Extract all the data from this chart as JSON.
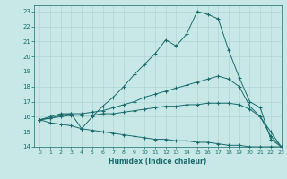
{
  "xlabel": "Humidex (Indice chaleur)",
  "bg_color": "#c8e8e8",
  "grid_color": "#b0d4d4",
  "line_color": "#1a6b6b",
  "xlim": [
    -0.5,
    23
  ],
  "ylim": [
    14,
    23.4
  ],
  "xticks": [
    0,
    1,
    2,
    3,
    4,
    5,
    6,
    7,
    8,
    9,
    10,
    11,
    12,
    13,
    14,
    15,
    16,
    17,
    18,
    19,
    20,
    21,
    22,
    23
  ],
  "yticks": [
    14,
    15,
    16,
    17,
    18,
    19,
    20,
    21,
    22,
    23
  ],
  "line1": {
    "x": [
      0,
      1,
      2,
      3,
      4,
      5,
      6,
      7,
      8,
      9,
      10,
      11,
      12,
      13,
      14,
      15,
      16,
      17,
      18,
      19,
      20,
      21,
      22,
      23
    ],
    "y": [
      15.8,
      16.0,
      16.2,
      16.2,
      15.2,
      16.0,
      16.7,
      17.3,
      18.0,
      18.8,
      19.5,
      20.2,
      21.1,
      20.7,
      21.5,
      23.0,
      22.8,
      22.5,
      20.4,
      18.6,
      17.0,
      16.6,
      14.5,
      14.0
    ]
  },
  "line2": {
    "x": [
      0,
      1,
      2,
      3,
      4,
      5,
      6,
      7,
      8,
      9,
      10,
      11,
      12,
      13,
      14,
      15,
      16,
      17,
      18,
      19,
      20,
      21,
      22,
      23
    ],
    "y": [
      15.8,
      15.9,
      16.1,
      16.2,
      16.2,
      16.3,
      16.4,
      16.6,
      16.8,
      17.0,
      17.3,
      17.5,
      17.7,
      17.9,
      18.1,
      18.3,
      18.5,
      18.7,
      18.5,
      18.0,
      16.7,
      16.0,
      14.7,
      14.0
    ]
  },
  "line3": {
    "x": [
      0,
      1,
      2,
      3,
      4,
      5,
      6,
      7,
      8,
      9,
      10,
      11,
      12,
      13,
      14,
      15,
      16,
      17,
      18,
      19,
      20,
      21,
      22,
      23
    ],
    "y": [
      15.8,
      15.9,
      16.0,
      16.1,
      16.1,
      16.1,
      16.2,
      16.2,
      16.3,
      16.4,
      16.5,
      16.6,
      16.7,
      16.7,
      16.8,
      16.8,
      16.9,
      16.9,
      16.9,
      16.8,
      16.5,
      16.0,
      15.0,
      14.0
    ]
  },
  "line4": {
    "x": [
      0,
      1,
      2,
      3,
      4,
      5,
      6,
      7,
      8,
      9,
      10,
      11,
      12,
      13,
      14,
      15,
      16,
      17,
      18,
      19,
      20,
      21,
      22,
      23
    ],
    "y": [
      15.8,
      15.6,
      15.5,
      15.4,
      15.2,
      15.1,
      15.0,
      14.9,
      14.8,
      14.7,
      14.6,
      14.5,
      14.5,
      14.4,
      14.4,
      14.3,
      14.3,
      14.2,
      14.1,
      14.1,
      14.0,
      14.0,
      14.0,
      14.0
    ]
  }
}
